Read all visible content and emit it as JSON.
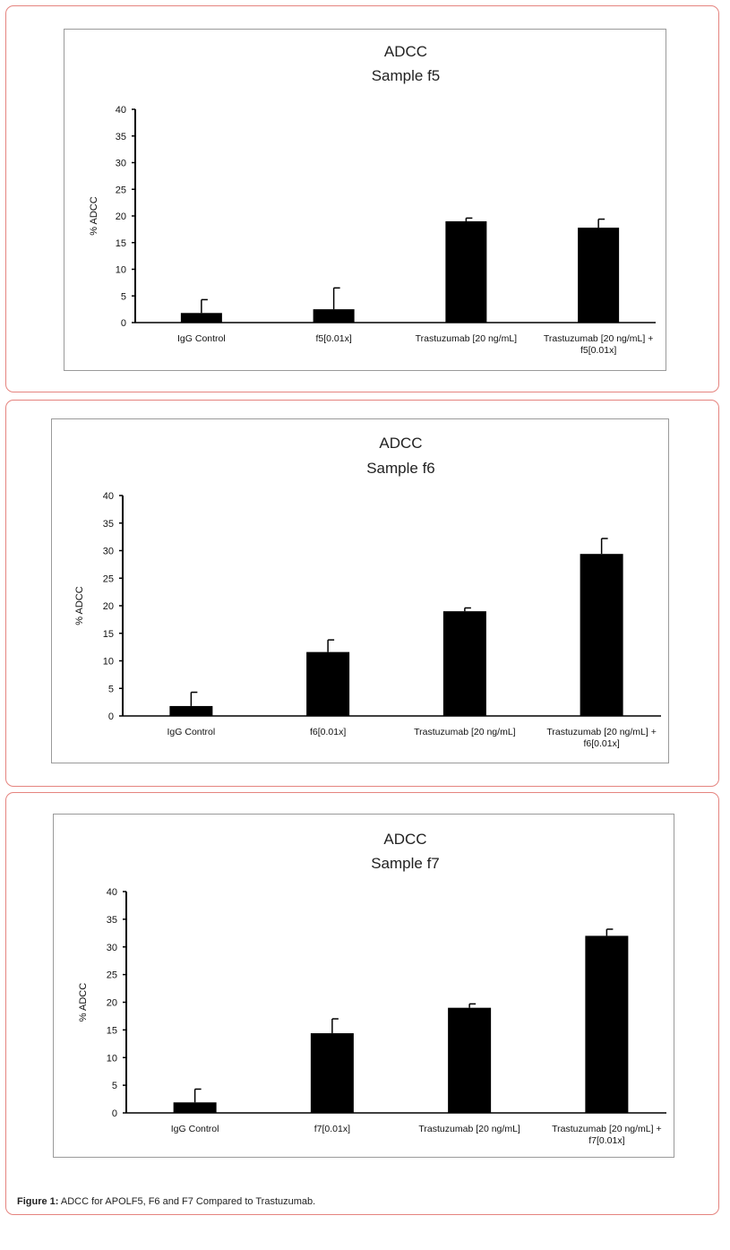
{
  "caption": {
    "label": "Figure 1:",
    "text": " ADCC for APOLF5, F6 and F7 Compared to Trastuzumab."
  },
  "chart_data": [
    {
      "type": "bar",
      "title": "ADCC",
      "subtitle": "Sample f5",
      "ylabel": "% ADCC",
      "ylim": [
        0,
        40
      ],
      "yticks": [
        0,
        5,
        10,
        15,
        20,
        25,
        30,
        35,
        40
      ],
      "categories": [
        [
          "IgG Control"
        ],
        [
          "f5[0.01x]"
        ],
        [
          "Trastuzumab [20 ng/mL]"
        ],
        [
          "Trastuzumab [20 ng/mL] +",
          "f5[0.01x]"
        ]
      ],
      "values": [
        1.8,
        2.5,
        19,
        17.8
      ],
      "errors": [
        2.5,
        4.0,
        0.6,
        1.6
      ]
    },
    {
      "type": "bar",
      "title": "ADCC",
      "subtitle": "Sample f6",
      "ylabel": "% ADCC",
      "ylim": [
        0,
        40
      ],
      "yticks": [
        0,
        5,
        10,
        15,
        20,
        25,
        30,
        35,
        40
      ],
      "categories": [
        [
          "IgG Control"
        ],
        [
          "f6[0.01x]"
        ],
        [
          "Trastuzumab [20 ng/mL]"
        ],
        [
          "Trastuzumab [20 ng/mL] +",
          "f6[0.01x]"
        ]
      ],
      "values": [
        1.8,
        11.6,
        19,
        29.4
      ],
      "errors": [
        2.5,
        2.2,
        0.6,
        2.8
      ]
    },
    {
      "type": "bar",
      "title": "ADCC",
      "subtitle": "Sample f7",
      "ylabel": "% ADCC",
      "ylim": [
        0,
        40
      ],
      "yticks": [
        0,
        5,
        10,
        15,
        20,
        25,
        30,
        35,
        40
      ],
      "categories": [
        [
          "IgG Control"
        ],
        [
          "f7[0.01x]"
        ],
        [
          "Trastuzumab [20 ng/mL]"
        ],
        [
          "Trastuzumab [20 ng/mL] +",
          "f7[0.01x]"
        ]
      ],
      "values": [
        1.9,
        14.4,
        19,
        32
      ],
      "errors": [
        2.4,
        2.6,
        0.7,
        1.2
      ]
    }
  ]
}
